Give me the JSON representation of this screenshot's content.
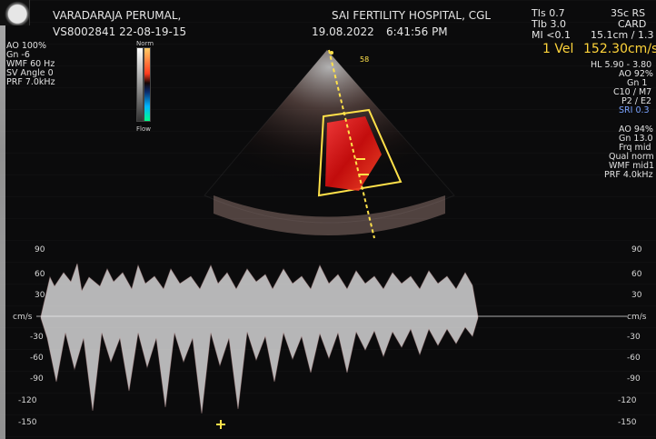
{
  "header": {
    "patient_name": "VARADARAJA PERUMAL,",
    "patient_id": "VS8002841 22-08-19-15",
    "hospital": "SAI FERTILITY HOSPITAL, CGL",
    "date": "19.08.2022",
    "time": "6:41:56 PM"
  },
  "left_settings": [
    "AO 100%",
    "Gn  -6",
    "WMF 60 Hz",
    "SV Angle  0",
    "PRF  7.0kHz"
  ],
  "top_right": {
    "tis": "TIs  0.7",
    "tib": "TIb  3.0",
    "mi": "MI <0.1",
    "probe": "3Sc RS",
    "preset": "CARD",
    "depth": "15.1cm / 1.3"
  },
  "measurement": {
    "label": "1 Vel",
    "value": "152.30cm/s"
  },
  "right_settings_top": [
    "HL  5.90 - 3.80",
    "AO 92%",
    "Gn  1",
    "C10 / M7",
    "P2 / E2",
    "SRI 0.3"
  ],
  "right_settings_bottom": [
    "AO 94%",
    "Gn  13.0",
    "Frq mid",
    "Qual norm",
    "WMF mid1",
    "PRF  4.0kHz"
  ],
  "gate_label": "58",
  "colorbar_labels": {
    "top": "Norm",
    "bottom": "Flow"
  },
  "doppler_axis": {
    "unit": "cm/s",
    "ticks": [
      "90",
      "60",
      "30",
      "-30",
      "-60",
      "-90",
      "-120",
      "-150"
    ],
    "ticks_right": [
      "90",
      "60",
      "30",
      "-30",
      "-60",
      "-90",
      "-120",
      "-150"
    ]
  },
  "colors": {
    "background": "#0b0b0c",
    "measurement": "#ffd43a",
    "text": "#e6e6e6",
    "color_doppler_red": "#ff2a2a",
    "baseline": "#bdbdbd"
  }
}
